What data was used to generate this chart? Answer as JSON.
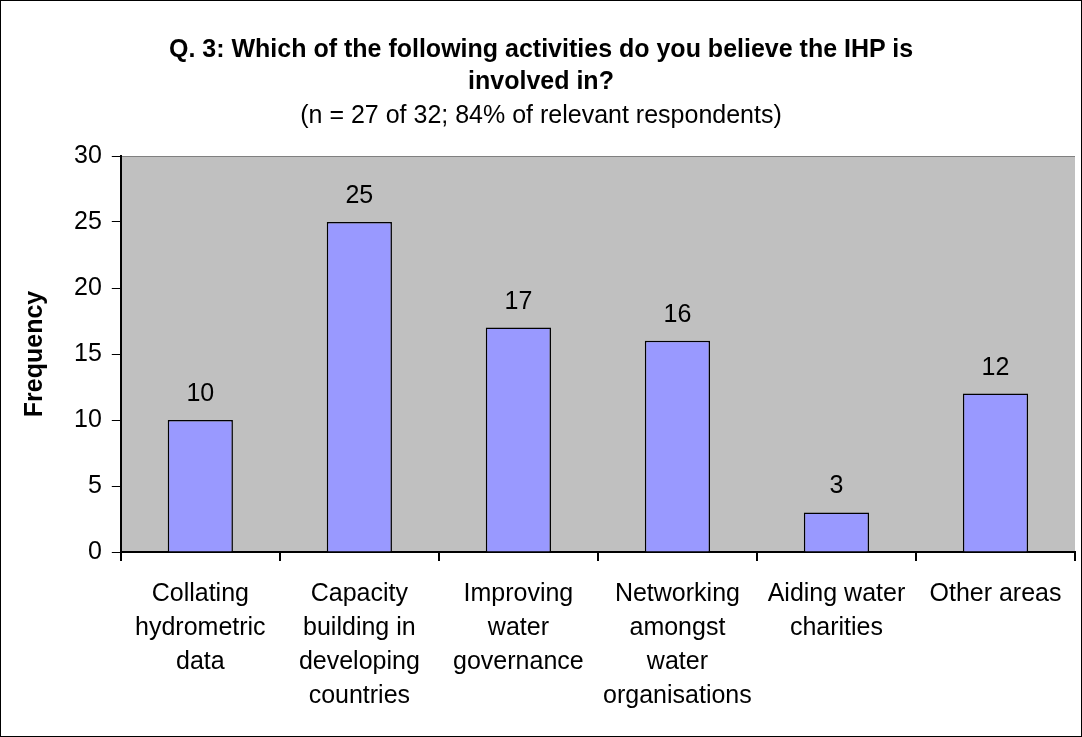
{
  "chart_data": {
    "type": "bar",
    "title": "Q. 3: Which of the following activities do you believe the IHP is involved in?",
    "subtitle": "(n = 27 of 32; 84% of relevant respondents)",
    "ylabel": "Frequency",
    "categories": [
      "Collating hydrometric data",
      "Capacity building in developing countries",
      "Improving water governance",
      "Networking amongst water organisations",
      "Aiding water charities",
      "Other areas"
    ],
    "values": [
      10,
      25,
      17,
      16,
      3,
      12
    ],
    "color": "#9999ff",
    "ylim": [
      0,
      30
    ],
    "yticks": [
      0,
      5,
      10,
      15,
      20,
      25,
      30
    ],
    "data_labels": true
  }
}
